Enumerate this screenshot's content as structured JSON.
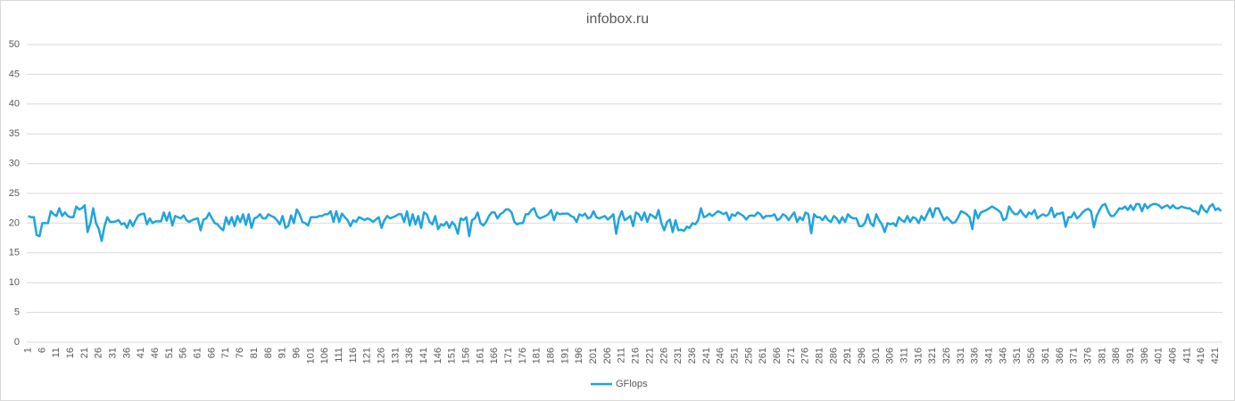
{
  "chart_data": {
    "type": "line",
    "title": "infobox.ru",
    "categories": [
      1,
      null,
      null,
      null,
      null,
      6,
      null,
      null,
      null,
      null,
      11,
      null,
      null,
      null,
      null,
      16,
      null,
      null,
      null,
      null,
      21,
      null,
      null,
      null,
      null,
      26,
      null,
      null,
      null,
      null,
      31,
      null,
      null,
      null,
      null,
      36,
      null,
      null,
      null,
      null,
      41,
      null,
      null,
      null,
      null,
      46,
      null,
      null,
      null,
      null,
      51,
      null,
      null,
      null,
      null,
      56,
      null,
      null,
      null,
      null,
      61,
      null,
      null,
      null,
      null,
      66,
      null,
      null,
      null,
      null,
      71,
      null,
      null,
      null,
      null,
      76,
      null,
      null,
      null,
      null,
      81,
      null,
      null,
      null,
      null,
      86,
      null,
      null,
      null,
      null,
      91,
      null,
      null,
      null,
      null,
      96,
      null,
      null,
      null,
      null,
      101,
      null,
      null,
      null,
      null,
      106,
      null,
      null,
      null,
      null,
      111,
      null,
      null,
      null,
      null,
      116,
      null,
      null,
      null,
      null,
      121,
      null,
      null,
      null,
      null,
      126,
      null,
      null,
      null,
      null,
      131,
      null,
      null,
      null,
      null,
      136,
      null,
      null,
      null,
      null,
      141,
      null,
      null,
      null,
      null,
      146,
      null,
      null,
      null,
      null,
      151,
      null,
      null,
      null,
      null,
      156,
      null,
      null,
      null,
      null,
      161,
      null,
      null,
      null,
      null,
      166,
      null,
      null,
      null,
      null,
      171,
      null,
      null,
      null,
      null,
      176,
      null,
      null,
      null,
      null,
      181,
      null,
      null,
      null,
      null,
      186,
      null,
      null,
      null,
      null,
      191,
      null,
      null,
      null,
      null,
      196,
      null,
      null,
      null,
      null,
      201,
      null,
      null,
      null,
      null,
      206,
      null,
      null,
      null,
      null,
      211,
      null,
      null,
      null,
      null,
      216,
      null,
      null,
      null,
      null,
      221,
      null,
      null,
      null,
      null,
      226,
      null,
      null,
      null,
      null,
      231,
      null,
      null,
      null,
      null,
      236,
      null,
      null,
      null,
      null,
      241,
      null,
      null,
      null,
      null,
      246,
      null,
      null,
      null,
      null,
      251,
      null,
      null,
      null,
      null,
      256,
      null,
      null,
      null,
      null,
      261,
      null,
      null,
      null,
      null,
      266,
      null,
      null,
      null,
      null,
      271,
      null,
      null,
      null,
      null,
      276,
      null,
      null,
      null,
      null,
      281,
      null,
      null,
      null,
      null,
      286,
      null,
      null,
      null,
      null,
      291,
      null,
      null,
      null,
      null,
      296,
      null,
      null,
      null,
      null,
      301,
      null,
      null,
      null,
      null,
      306,
      null,
      null,
      null,
      null,
      311,
      null,
      null,
      null,
      null,
      316,
      null,
      null,
      null,
      null,
      321,
      null,
      null,
      null,
      null,
      326,
      null,
      null,
      null,
      null,
      331,
      null,
      null,
      null,
      null,
      336,
      null,
      null,
      null,
      null,
      341,
      null,
      null,
      null,
      null,
      346,
      null,
      null,
      null,
      null,
      351,
      null,
      null,
      null,
      null,
      356,
      null,
      null,
      null,
      null,
      361,
      null,
      null,
      null,
      null,
      366,
      null,
      null,
      null,
      null,
      371,
      null,
      null,
      null,
      null,
      376,
      null,
      null,
      null,
      null,
      381,
      null,
      null,
      null,
      null,
      386,
      null,
      null,
      null,
      null,
      391,
      null,
      null,
      null,
      null,
      396,
      null,
      null,
      null,
      null,
      401,
      null,
      null,
      null,
      null,
      406,
      null,
      null,
      null,
      null,
      411,
      null,
      null,
      null,
      null,
      416,
      null,
      null,
      null,
      null,
      421,
      null,
      null
    ],
    "series": [
      {
        "name": "GFlops",
        "color": "#21a4dc",
        "values": [
          21.2,
          21,
          21,
          18,
          17.8,
          20,
          20,
          20,
          22,
          21.5,
          21.2,
          22.5,
          21.2,
          21.8,
          21.2,
          21,
          21,
          22.8,
          22.3,
          22.5,
          23,
          18.5,
          20,
          22.5,
          20,
          19,
          17,
          19.5,
          21,
          20.2,
          20.2,
          20.3,
          20.5,
          19.8,
          20,
          19.2,
          20.5,
          19.5,
          20.5,
          21.3,
          21.5,
          21.6,
          19.8,
          20.8,
          20,
          20.3,
          20.3,
          20.3,
          21.8,
          20.4,
          21.8,
          19.6,
          21.2,
          21,
          20.8,
          21.3,
          20.5,
          20.2,
          20.5,
          20.7,
          20.8,
          18.8,
          20.6,
          20.8,
          21.7,
          20.8,
          20,
          19.8,
          19.2,
          18.8,
          21,
          19.8,
          21,
          19.5,
          21.2,
          20.2,
          21.5,
          19.7,
          21.5,
          19.2,
          20.8,
          21,
          21.5,
          20.8,
          20.8,
          21.5,
          21.2,
          21,
          20.5,
          19.8,
          21.2,
          19.2,
          19.5,
          21.3,
          20,
          22.3,
          21.5,
          20.2,
          20,
          19.6,
          21,
          21,
          21,
          21.2,
          21.2,
          21.5,
          21.5,
          22,
          20.2,
          22,
          20.2,
          21.6,
          21,
          20.5,
          19.5,
          20.5,
          20.2,
          21,
          20.8,
          20.5,
          20.8,
          20.6,
          20.2,
          20.6,
          21,
          19.2,
          20.5,
          21.2,
          20.8,
          21,
          21.2,
          21.5,
          21.5,
          20.2,
          22,
          19.6,
          21.5,
          19.8,
          21.2,
          19.2,
          21.8,
          21.5,
          20.2,
          19.8,
          21.2,
          19,
          19.8,
          19.6,
          20.2,
          19.2,
          20.2,
          19.6,
          18.2,
          20.8,
          20.5,
          21,
          17.8,
          20.5,
          20.8,
          21.8,
          20,
          19.6,
          20.2,
          21.2,
          21.8,
          21.8,
          20.8,
          21.5,
          21.8,
          22.3,
          22.3,
          21.8,
          20.2,
          19.8,
          20,
          20,
          21.5,
          21.5,
          22.2,
          22.5,
          21.2,
          20.8,
          21,
          21.2,
          21.5,
          22.2,
          20.5,
          21.8,
          21.5,
          21.6,
          21.6,
          21.6,
          21.2,
          21,
          20.2,
          21.5,
          21.2,
          21.6,
          20.8,
          21,
          22,
          21,
          20.8,
          21,
          21.2,
          20.6,
          21,
          21.5,
          18.2,
          20.8,
          22,
          20.5,
          20.8,
          21.2,
          19.5,
          21.8,
          21.5,
          20.5,
          21.8,
          20.2,
          21.5,
          21.2,
          20.8,
          22.2,
          20,
          18.8,
          20.2,
          20.6,
          18.5,
          20.5,
          18.8,
          18.9,
          18.7,
          19.4,
          19.2,
          20,
          19.8,
          20.5,
          22.5,
          21,
          21.2,
          21.6,
          21.2,
          21.6,
          22,
          21.8,
          21.5,
          21.8,
          20.5,
          21.5,
          21.2,
          21.8,
          21.5,
          21.2,
          20.6,
          21.2,
          21.3,
          21.2,
          21.8,
          21.5,
          20.8,
          21.2,
          21.2,
          21.2,
          21.5,
          20.5,
          20.8,
          21.5,
          21.2,
          20.5,
          21.2,
          21.8,
          20.2,
          21,
          20.5,
          21.8,
          21.5,
          18.3,
          21.5,
          21,
          21,
          20.5,
          21.2,
          20.5,
          20.2,
          21.2,
          20.8,
          20,
          21,
          20.2,
          21.5,
          21,
          20.8,
          20.8,
          19.5,
          19.5,
          20,
          21.5,
          20,
          19.5,
          21.5,
          20.5,
          19.8,
          18.5,
          20,
          19.8,
          20,
          19.5,
          21,
          20.5,
          20.2,
          21.2,
          20.2,
          21,
          20.8,
          20,
          21.2,
          20.5,
          21.5,
          22.5,
          21,
          22.5,
          22.5,
          21.5,
          20.5,
          21,
          20.5,
          20,
          20.2,
          21,
          22,
          21.8,
          21.5,
          21,
          19,
          22.2,
          20.8,
          21.8,
          22,
          22.2,
          22.5,
          22.8,
          22.5,
          22.2,
          21.8,
          20.5,
          20.8,
          22.8,
          22,
          21.5,
          21.5,
          22.2,
          21.5,
          21,
          21.8,
          21.5,
          22.2,
          20.8,
          21.2,
          21.5,
          21.2,
          21.5,
          22.6,
          21,
          21.6,
          21.6,
          21.8,
          19.4,
          21,
          21,
          21.8,
          20.8,
          21.2,
          21.8,
          22.2,
          22.4,
          22,
          19.3,
          21.2,
          22.2,
          23,
          23.2,
          22,
          21.2,
          21.2,
          21.8,
          22.5,
          22.4,
          22.8,
          22.2,
          23,
          22.2,
          23.2,
          23.2,
          22,
          23.2,
          22.5,
          23,
          23.2,
          23.2,
          23,
          22.5,
          22.8,
          23,
          22.5,
          23,
          22.5,
          22.5,
          22.8,
          22.6,
          22.5,
          22.5,
          22,
          22,
          21.5,
          23,
          22.2,
          21.8,
          22.8,
          23.2,
          22.2,
          22.5,
          22
        ]
      }
    ],
    "ylim": [
      0,
      50
    ],
    "yticks": [
      0,
      5,
      10,
      15,
      20,
      25,
      30,
      35,
      40,
      45,
      50
    ],
    "grid": true,
    "legend": "bottom"
  }
}
